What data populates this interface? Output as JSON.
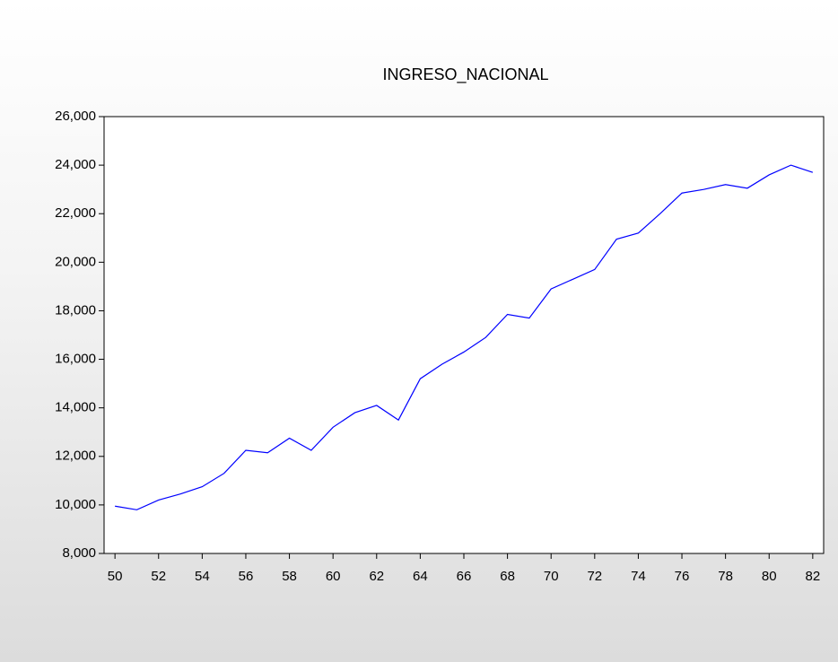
{
  "chart_data": {
    "type": "line",
    "title": "INGRESO_NACIONAL",
    "x": [
      50,
      51,
      52,
      53,
      54,
      55,
      56,
      57,
      58,
      59,
      60,
      61,
      62,
      63,
      64,
      65,
      66,
      67,
      68,
      69,
      70,
      71,
      72,
      73,
      74,
      75,
      76,
      77,
      78,
      79,
      80,
      81,
      82
    ],
    "series": [
      {
        "name": "INGRESO_NACIONAL",
        "color": "#0000ff",
        "values": [
          9950,
          9800,
          10200,
          10450,
          10750,
          11300,
          12250,
          12150,
          12750,
          12250,
          13200,
          13800,
          14100,
          13500,
          15200,
          15800,
          16300,
          16900,
          17850,
          17700,
          18900,
          19300,
          19700,
          20950,
          21200,
          22000,
          22850,
          23000,
          23200,
          23050,
          23600,
          24000,
          23700
        ]
      }
    ],
    "xlim": [
      49.5,
      82.5
    ],
    "xticks": [
      50,
      52,
      54,
      56,
      58,
      60,
      62,
      64,
      66,
      68,
      70,
      72,
      74,
      76,
      78,
      80,
      82
    ],
    "ylim": [
      8000,
      26000
    ],
    "yticks": [
      {
        "value": 8000,
        "label": "8,000"
      },
      {
        "value": 10000,
        "label": "10,000"
      },
      {
        "value": 12000,
        "label": "12,000"
      },
      {
        "value": 14000,
        "label": "14,000"
      },
      {
        "value": 16000,
        "label": "16,000"
      },
      {
        "value": 18000,
        "label": "18,000"
      },
      {
        "value": 20000,
        "label": "20,000"
      },
      {
        "value": 22000,
        "label": "22,000"
      },
      {
        "value": 24000,
        "label": "24,000"
      },
      {
        "value": 26000,
        "label": "26,000"
      }
    ],
    "grid": false
  }
}
